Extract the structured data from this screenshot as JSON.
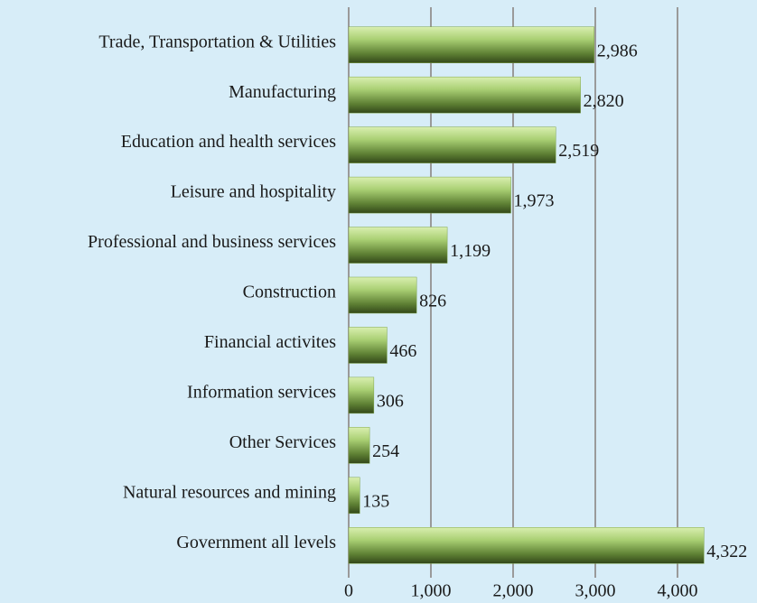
{
  "chart_data": {
    "type": "barh",
    "categories": [
      "Trade, Transportation & Utilities",
      "Manufacturing",
      "Education and health services",
      "Leisure and hospitality",
      "Professional and business services",
      "Construction",
      "Financial activites",
      "Information services",
      "Other Services",
      "Natural resources and mining",
      "Government all levels"
    ],
    "values": [
      2986,
      2820,
      2519,
      1973,
      1199,
      826,
      466,
      306,
      254,
      135,
      4322
    ],
    "value_labels": [
      "2,986",
      "2,820",
      "2,519",
      "1,973",
      "1,199",
      "826",
      "466",
      "306",
      "254",
      "135",
      "4,322"
    ],
    "color": "#7fa548",
    "xlim": [
      0,
      4000
    ],
    "xticks": [
      0,
      {
        "value": 1000,
        "label": "1,000"
      },
      {
        "value": 2000,
        "label": "2,000"
      },
      {
        "value": 3000,
        "label": "3,000"
      },
      {
        "value": 4000,
        "label": "4,000"
      }
    ],
    "grid": true
  }
}
